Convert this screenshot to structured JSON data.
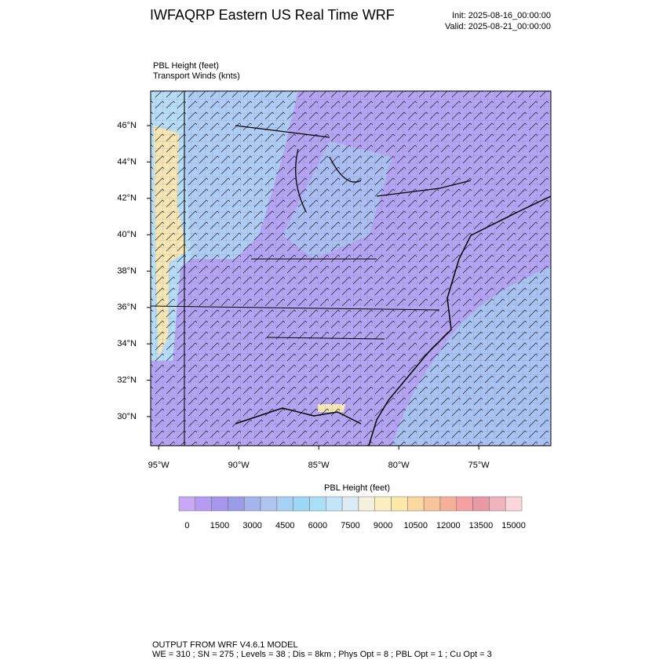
{
  "header": {
    "title": "IWFAQRP Eastern US Real Time WRF",
    "init": "Init: 2025-08-16_00:00:00",
    "valid": "Valid: 2025-08-21_00:00:00"
  },
  "field_labels": [
    "PBL Height   (feet)",
    "Transport Winds   (knts)"
  ],
  "map": {
    "xlim": [
      -95.5,
      -70.5
    ],
    "ylim": [
      28.4,
      47.9
    ],
    "xticks": [
      {
        "value": -95,
        "label": "95°W"
      },
      {
        "value": -90,
        "label": "90°W"
      },
      {
        "value": -85,
        "label": "85°W"
      },
      {
        "value": -80,
        "label": "80°W"
      },
      {
        "value": -75,
        "label": "75°W"
      }
    ],
    "yticks": [
      {
        "value": 30,
        "label": "30°N"
      },
      {
        "value": 32,
        "label": "32°N"
      },
      {
        "value": 34,
        "label": "34°N"
      },
      {
        "value": 36,
        "label": "36°N"
      },
      {
        "value": 38,
        "label": "38°N"
      },
      {
        "value": 40,
        "label": "40°N"
      },
      {
        "value": 42,
        "label": "42°N"
      },
      {
        "value": 44,
        "label": "44°N"
      },
      {
        "value": 46,
        "label": "46°N"
      }
    ]
  },
  "colorbar": {
    "title": "PBL Height  (feet)",
    "colors": [
      "#c9a8f5",
      "#b59cf2",
      "#a696ee",
      "#9a9ce8",
      "#a6b4ec",
      "#b0c4f0",
      "#a8d0f4",
      "#9cd8f6",
      "#a9e0f8",
      "#c2e6f8",
      "#dcecf5",
      "#f4f0dc",
      "#fbefc0",
      "#fce9a8",
      "#fbd8a0",
      "#f8c49a",
      "#f6b098",
      "#f4a0a0",
      "#e89aa4",
      "#f0b4bc",
      "#fad6dc"
    ],
    "ticks": [
      0,
      1500,
      3000,
      4500,
      6000,
      7500,
      9000,
      10500,
      12000,
      13500,
      15000
    ]
  },
  "footer": [
    "OUTPUT FROM WRF V4.6.1 MODEL",
    "WE = 310 ; SN = 275 ; Levels = 38 ; Dis = 8km ; Phys Opt = 8 ; PBL Opt = 1 ; Cu Opt = 3"
  ]
}
